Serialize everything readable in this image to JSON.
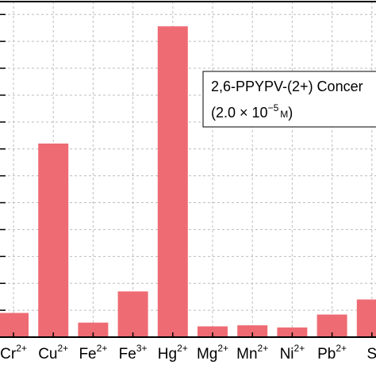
{
  "chart_data": {
    "type": "bar",
    "categories": [
      {
        "base": "Cr",
        "sup": "2+"
      },
      {
        "base": "Cu",
        "sup": "2+"
      },
      {
        "base": "Fe",
        "sup": "2+"
      },
      {
        "base": "Fe",
        "sup": "3+"
      },
      {
        "base": "Hg",
        "sup": "2+"
      },
      {
        "base": "Mg",
        "sup": "2+"
      },
      {
        "base": "Mn",
        "sup": "2+"
      },
      {
        "base": "Ni",
        "sup": "2+"
      },
      {
        "base": "Pb",
        "sup": "2+"
      },
      {
        "base": "S",
        "sup": ""
      }
    ],
    "values": [
      0.45,
      3.6,
      0.27,
      0.85,
      5.78,
      0.2,
      0.22,
      0.18,
      0.42,
      0.7
    ],
    "ylim": [
      0,
      6.24
    ],
    "grid": true,
    "bar_color": "#ee6b73",
    "legend": {
      "line1": "2,6-PPYPV-(2+) Concer",
      "line2_prefix": "(2.0 × 10",
      "line2_exp": "−5",
      "line2_unit": "M",
      "line2_close": ")"
    }
  }
}
